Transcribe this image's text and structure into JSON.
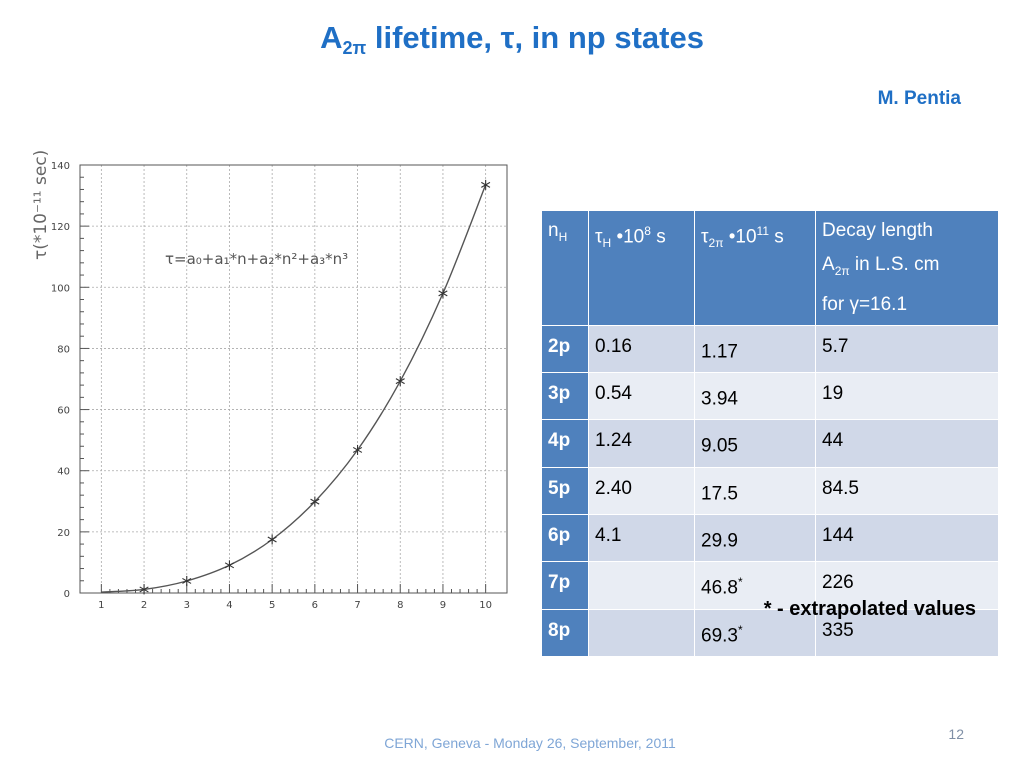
{
  "slide": {
    "title_pre": "A",
    "title_sub": "2π",
    "title_post": " lifetime, τ, in np states",
    "author": "M. Pentia",
    "note": "* - extrapolated values",
    "footer": "CERN, Geneva - Monday 26, September, 2011",
    "page_number": "12"
  },
  "colors": {
    "title": "#1f6fc5",
    "table_header": "#4f81bd",
    "row_odd": "#d0d8e8",
    "row_even": "#e9edf4",
    "curve": "#555555"
  },
  "table": {
    "col1": {
      "main": "n",
      "sub": "H"
    },
    "col2": {
      "t1": "τ",
      "sub": "H",
      "t2": " •10",
      "sup": "8",
      "t3": " s"
    },
    "col3": {
      "t1": "τ",
      "sub": "2π",
      "t2": " •10",
      "sup": "11",
      "t3": " s"
    },
    "col4": {
      "line1": "Decay length",
      "line2a": "A",
      "line2sub": "2π",
      "line2b": " in L.S. cm",
      "line3": "for γ=16.1"
    },
    "rows": [
      {
        "state": "2p",
        "tauH": "0.16",
        "tau2pi": "1.17",
        "star": "",
        "length": "5.7"
      },
      {
        "state": "3p",
        "tauH": "0.54",
        "tau2pi": "3.94",
        "star": "",
        "length": "19"
      },
      {
        "state": "4p",
        "tauH": "1.24",
        "tau2pi": "9.05",
        "star": "",
        "length": "44"
      },
      {
        "state": "5p",
        "tauH": "2.40",
        "tau2pi": "17.5",
        "star": "",
        "length": "84.5"
      },
      {
        "state": "6p",
        "tauH": "4.1",
        "tau2pi": "29.9",
        "star": "",
        "length": "144"
      },
      {
        "state": "7p",
        "tauH": "",
        "tau2pi": "46.8",
        "star": "*",
        "length": "226"
      },
      {
        "state": "8p",
        "tauH": "",
        "tau2pi": "69.3",
        "star": "*",
        "length": "335"
      }
    ]
  },
  "chart_data": {
    "type": "scatter",
    "ylabel": "τ(*10⁻¹¹ sec)",
    "formula": "τ=a₀+a₁*n+a₂*n²+a₃*n³",
    "x": [
      2,
      3,
      4,
      5,
      6,
      7,
      8,
      9,
      10
    ],
    "y": [
      1.17,
      3.94,
      9.05,
      17.5,
      29.9,
      46.8,
      69.3,
      98,
      133.5
    ],
    "fit_curve": true,
    "xlim": [
      0.5,
      10.5
    ],
    "ylim": [
      0,
      140
    ],
    "xticks": [
      1,
      2,
      3,
      4,
      5,
      6,
      7,
      8,
      9,
      10
    ],
    "yticks": [
      0,
      20,
      40,
      60,
      80,
      100,
      120,
      140
    ],
    "grid": true,
    "marker": "asterisk"
  }
}
